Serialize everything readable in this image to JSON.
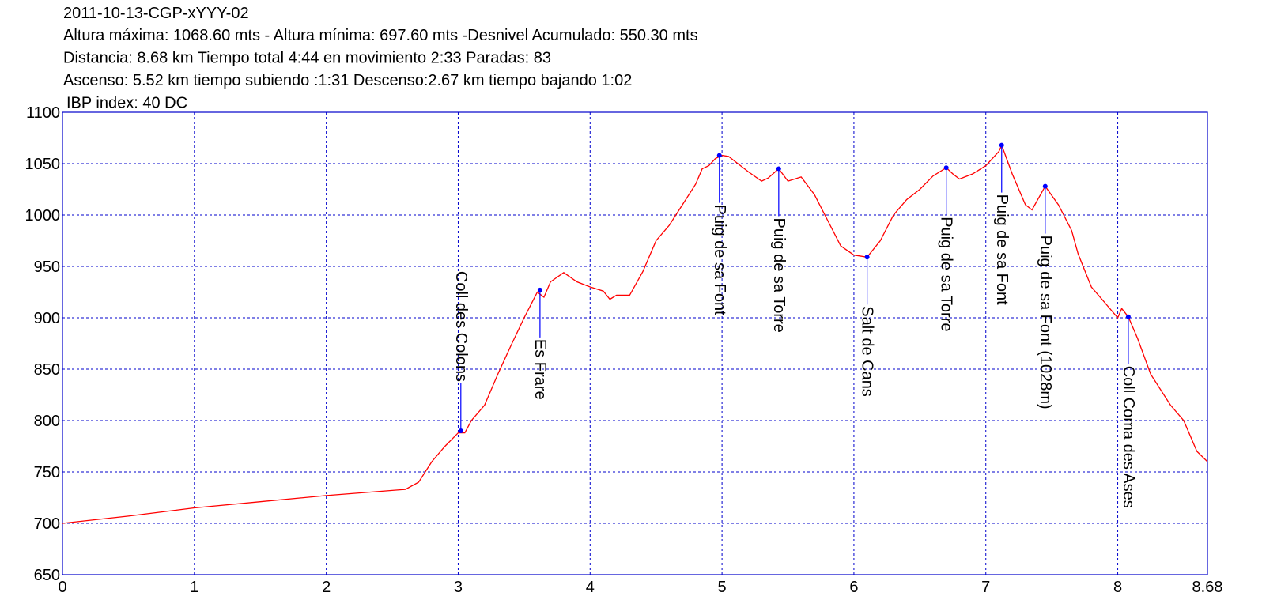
{
  "chart_data": {
    "type": "line",
    "title": "2011-10-13-CGP-xYYY-02",
    "info_lines": [
      "Altura máxima: 1068.60 mts - Altura mínima: 697.60 mts -Desnivel Acumulado: 550.30 mts",
      "Distancia: 8.68 km  Tiempo total 4:44  en movimiento 2:33 Paradas: 83",
      "Ascenso: 5.52 km  tiempo subiendo :1:31  Descenso:2.67 km tiempo bajando 1:02",
      "IBP index: 40 DC"
    ],
    "xlim": [
      0,
      8.68
    ],
    "xticks": [
      0,
      1,
      2,
      3,
      4,
      5,
      6,
      7,
      8,
      8.68
    ],
    "ylim": [
      650,
      1100
    ],
    "yticks": [
      650,
      700,
      750,
      800,
      850,
      900,
      950,
      1000,
      1050,
      1100
    ],
    "grid": true,
    "grid_color": "#0000cc",
    "frame_color": "#0000cc",
    "series": [
      {
        "color": "#ff0000",
        "x": [
          0,
          0.5,
          1,
          1.5,
          2,
          2.5,
          2.6,
          2.7,
          2.8,
          2.9,
          3.0,
          3.05,
          3.1,
          3.2,
          3.3,
          3.4,
          3.5,
          3.6,
          3.65,
          3.7,
          3.8,
          3.9,
          4.0,
          4.1,
          4.15,
          4.2,
          4.3,
          4.4,
          4.5,
          4.6,
          4.7,
          4.8,
          4.85,
          4.9,
          4.95,
          5.0,
          5.05,
          5.1,
          5.2,
          5.3,
          5.35,
          5.43,
          5.5,
          5.6,
          5.7,
          5.8,
          5.9,
          6.0,
          6.1,
          6.2,
          6.3,
          6.4,
          6.5,
          6.6,
          6.7,
          6.75,
          6.8,
          6.9,
          7.0,
          7.1,
          7.12,
          7.2,
          7.3,
          7.35,
          7.45,
          7.55,
          7.65,
          7.7,
          7.8,
          7.9,
          8.0,
          8.03,
          8.08,
          8.15,
          8.25,
          8.4,
          8.5,
          8.6,
          8.68
        ],
        "values": [
          700,
          707,
          715,
          721,
          727,
          732,
          733,
          740,
          760,
          775,
          788,
          788,
          800,
          815,
          845,
          873,
          900,
          925,
          920,
          935,
          944,
          935,
          930,
          926,
          918,
          922,
          922,
          945,
          975,
          990,
          1010,
          1030,
          1045,
          1048,
          1055,
          1058,
          1057,
          1052,
          1042,
          1033,
          1036,
          1045,
          1033,
          1037,
          1020,
          995,
          970,
          961,
          959,
          975,
          1000,
          1015,
          1025,
          1038,
          1046,
          1040,
          1035,
          1040,
          1048,
          1062,
          1068,
          1040,
          1010,
          1005,
          1028,
          1010,
          985,
          962,
          930,
          915,
          900,
          909,
          901,
          880,
          845,
          815,
          800,
          770,
          760
        ]
      }
    ],
    "waypoints": {
      "color": "#0000ff",
      "items": [
        {
          "x": 3.02,
          "y": 790,
          "label": "Coll des Colons",
          "label_position": "above"
        },
        {
          "x": 3.62,
          "y": 927,
          "label": "Es Frare",
          "label_position": "below"
        },
        {
          "x": 4.98,
          "y": 1058,
          "label": "Puig de sa Font",
          "label_position": "below"
        },
        {
          "x": 5.43,
          "y": 1045,
          "label": "Puig de sa Torre",
          "label_position": "below"
        },
        {
          "x": 6.1,
          "y": 959,
          "label": "Salt de Cans",
          "label_position": "below"
        },
        {
          "x": 6.7,
          "y": 1046,
          "label": "Puig de sa Torre",
          "label_position": "below"
        },
        {
          "x": 7.12,
          "y": 1068,
          "label": "Puig de sa Font",
          "label_position": "below"
        },
        {
          "x": 7.45,
          "y": 1028,
          "label": "Puig de sa Font (1028m)",
          "label_position": "below"
        },
        {
          "x": 8.08,
          "y": 901,
          "label": "Coll Coma des Ases",
          "label_position": "below"
        }
      ]
    }
  }
}
